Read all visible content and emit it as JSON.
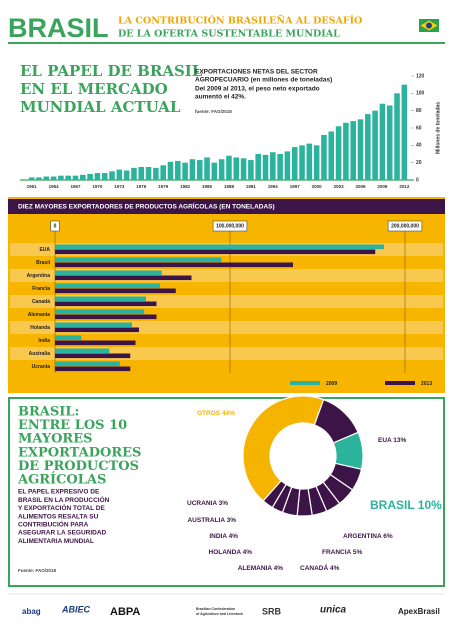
{
  "header": {
    "title": "BRASIL",
    "subtitle": [
      "LA CONTRIBUCIÓN BRASILEÑA AL DESAFÍO",
      "DE LA OFERTA SUSTENTABLE MUNDIAL"
    ]
  },
  "chart_data": [
    {
      "type": "bar",
      "title": [
        "EL PAPEL DE BRASIL",
        "EN EL MERCADO",
        "MUNDIAL ACTUAL"
      ],
      "subtitle": [
        "EXPORTACIONES NETAS DEL SECTOR",
        "AGROPECUARIO (en millones de toneladas)"
      ],
      "annotation": [
        "Del 2009 al 2013, el peso neto exportado",
        "aumentó el 42%."
      ],
      "source": "fuente: FAO/2018",
      "ylabel": "Millones de toneladas",
      "color": "#2bb39e",
      "categories": [
        "1961",
        null,
        null,
        "1964",
        null,
        null,
        "1967",
        null,
        null,
        "1970",
        null,
        null,
        "1973",
        null,
        null,
        "1976",
        null,
        null,
        "1979",
        null,
        null,
        "1982",
        null,
        null,
        "1985",
        null,
        null,
        "1988",
        null,
        null,
        "1991",
        null,
        null,
        "1994",
        null,
        null,
        "1997",
        null,
        null,
        "2000",
        null,
        null,
        "2003",
        null,
        null,
        "2006",
        null,
        null,
        "2009",
        null,
        null,
        "2012"
      ],
      "values": [
        3,
        3,
        4,
        4,
        5,
        5,
        5,
        6,
        7,
        8,
        8,
        10,
        12,
        11,
        14,
        15,
        15,
        14,
        17,
        21,
        22,
        20,
        24,
        23,
        26,
        20,
        24,
        28,
        26,
        25,
        23,
        30,
        29,
        32,
        30,
        33,
        38,
        40,
        42,
        40,
        52,
        56,
        62,
        66,
        68,
        70,
        76,
        80,
        88,
        86,
        100,
        110
      ],
      "ylim": [
        0,
        120
      ],
      "yticks": [
        0,
        20,
        40,
        60,
        80,
        100,
        120
      ]
    },
    {
      "type": "hbar",
      "title": "DIEZ MAYORES EXPORTADORES DE PRODUCTOS AGRÍCOLAS (EN TONELADAS)",
      "categories": [
        "EUA",
        "Brasil",
        "Argentina",
        "Francia",
        "Canadá",
        "Alemania",
        "Holanda",
        "India",
        "Australia",
        "Ucrania"
      ],
      "series": [
        {
          "name": "2009",
          "color": "#2bb39e",
          "values": [
            188000000,
            95000000,
            61000000,
            60000000,
            52000000,
            51000000,
            44000000,
            15000000,
            31000000,
            37000000
          ]
        },
        {
          "name": "2013",
          "color": "#3d1447",
          "values": [
            183000000,
            136000000,
            78000000,
            69000000,
            58000000,
            58000000,
            48000000,
            46000000,
            43000000,
            43000000
          ]
        }
      ],
      "xlim": [
        0,
        210000000
      ],
      "xticks": [
        0,
        {
          "value": 100000000,
          "label": "100,000,000"
        },
        {
          "value": 200000000,
          "label": "200,000,000"
        }
      ]
    },
    {
      "type": "donut",
      "title": [
        "BRASIL:",
        "ENTRE LOS 10",
        "MAYORES",
        "EXPORTADORES",
        "DE PRODUCTOS",
        "AGRÍCOLAS"
      ],
      "text": [
        "EL PAPEL EXPRESIVO DE",
        "BRASIL EN LA PRODUCCIÓN",
        "Y EXPORTACIÓN TOTAL DE",
        "ALIMENTOS RESALTA SU",
        "CONTRIBUCIÓN PARA",
        "ASEGURAR LA SEGURIDAD",
        "ALIMENTARIA MUNDIAL"
      ],
      "source": "Fuente: FAO/2018",
      "categories": [
        "EUA",
        "BRASIL",
        "ARGENTINA",
        "FRANCIA",
        "CANADÁ",
        "ALEMANIA",
        "HOLANDA",
        "INDIA",
        "AUSTRALIA",
        "UCRANIA",
        "OTROS"
      ],
      "values": [
        13,
        10,
        6,
        5,
        4,
        4,
        4,
        4,
        3,
        3,
        44
      ],
      "value_labels": [
        "13%",
        "10%",
        "6%",
        "5%",
        "4%",
        "4%",
        "4%",
        "4%",
        "3%",
        "3%",
        "44%"
      ],
      "colors": [
        "#3d1447",
        "#2bb39e",
        "#3d1447",
        "#3d1447",
        "#3d1447",
        "#3d1447",
        "#3d1447",
        "#3d1447",
        "#3d1447",
        "#3d1447",
        "#f5b400"
      ]
    }
  ],
  "logos": [
    "abag",
    "ABIEC",
    "ABPA",
    "Brazilian Confederation",
    "of Agriculture and Livestock",
    "SRB",
    "unica",
    "ApexBrasil"
  ]
}
